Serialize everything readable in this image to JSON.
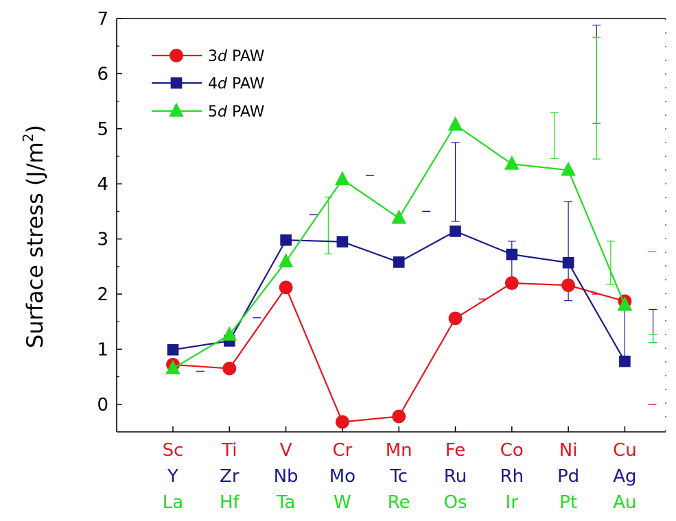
{
  "chart_data": {
    "type": "line",
    "ylabel": "Surface stress (J/m",
    "ylabel_sup": "2",
    "ylabel_close": ")",
    "ylim": [
      -0.5,
      7
    ],
    "yticks": [
      "0",
      "1",
      "2",
      "3",
      "4",
      "5",
      "6",
      "7"
    ],
    "ytick_values": [
      0,
      1,
      2,
      3,
      4,
      5,
      6,
      7
    ],
    "categories": [
      [
        "Sc",
        "Y",
        "La"
      ],
      [
        "Ti",
        "Zr",
        "Hf"
      ],
      [
        "V",
        "Nb",
        "Ta"
      ],
      [
        "Cr",
        "Mo",
        "W"
      ],
      [
        "Mn",
        "Tc",
        "Re"
      ],
      [
        "Fe",
        "Ru",
        "Os"
      ],
      [
        "Co",
        "Rh",
        "Ir"
      ],
      [
        "Ni",
        "Pd",
        "Pt"
      ],
      [
        "Cu",
        "Ag",
        "Au"
      ]
    ],
    "grid": false,
    "legend_position": "top-left",
    "series": [
      {
        "name_prefix": "3",
        "name_italic": "d",
        "name_suffix": " PAW",
        "color": "#e8141b",
        "marker": "circle",
        "values": [
          0.72,
          0.65,
          2.12,
          -0.32,
          -0.22,
          1.56,
          2.2,
          2.16,
          1.87
        ],
        "ref_marks": [
          null,
          null,
          null,
          null,
          null,
          1.91,
          null,
          2.0,
          0.0
        ],
        "error_bars": []
      },
      {
        "name_prefix": "4",
        "name_italic": "d",
        "name_suffix": " PAW",
        "color": "#1a1a8c",
        "marker": "square",
        "values": [
          0.99,
          1.15,
          2.98,
          2.95,
          2.58,
          3.14,
          2.72,
          2.57,
          0.78
        ],
        "ref_marks": [
          0.6,
          1.57,
          3.44,
          4.15,
          3.5,
          null,
          null,
          null,
          null
        ],
        "error_bars": [
          {
            "index": 5,
            "low": 3.32,
            "high": 4.75
          },
          {
            "index": 6,
            "low": 2.1,
            "high": 2.96
          },
          {
            "index": 7,
            "low": 1.88,
            "high": 3.68
          },
          {
            "index": 7.5,
            "low": 5.1,
            "high": 6.88
          },
          {
            "index": 8,
            "low": 0.74,
            "high": 1.74
          },
          {
            "index": 8.5,
            "low": 1.12,
            "high": 1.72
          }
        ]
      },
      {
        "name_prefix": "5",
        "name_italic": "d",
        "name_suffix": " PAW",
        "color": "#22dd22",
        "marker": "triangle",
        "values": [
          0.65,
          1.26,
          2.59,
          4.08,
          3.38,
          5.07,
          4.36,
          4.25,
          1.8
        ],
        "ref_marks": [
          null,
          null,
          null,
          null,
          null,
          null,
          null,
          null,
          2.77
        ],
        "error_bars": [
          {
            "index": 2.75,
            "low": 2.73,
            "high": 3.76
          },
          {
            "index": 6.75,
            "low": 4.46,
            "high": 5.29
          },
          {
            "index": 7.5,
            "low": 4.45,
            "high": 6.66
          },
          {
            "index": 7.75,
            "low": 2.17,
            "high": 2.96
          },
          {
            "index": 8.5,
            "low": 1.12,
            "high": 1.27
          }
        ]
      }
    ]
  }
}
